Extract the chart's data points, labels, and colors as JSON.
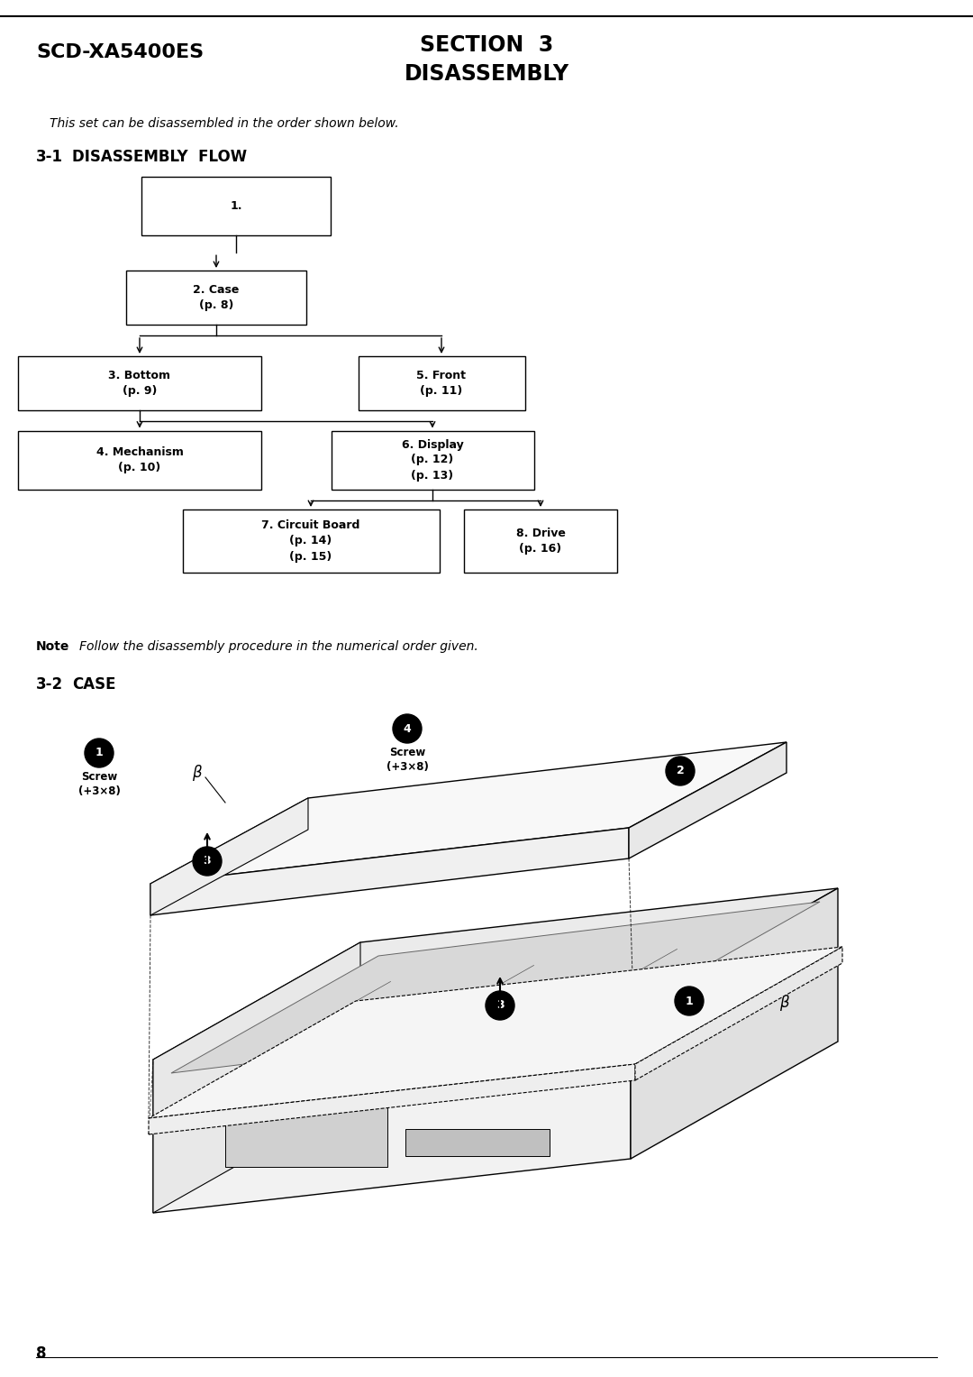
{
  "bg_color": "#ffffff",
  "page_title_left": "SCD-XA5400ES",
  "section_title_line1": "SECTION  3",
  "section_title_line2": "DISASSEMBLY",
  "subtitle_italic": "This set can be disassembled in the order shown below.",
  "section1_num": "3-1",
  "section1_title": "DISASSEMBLY FLOW",
  "note_bold": "Note",
  "note_italic": "Follow the disassembly procedure in the numerical order given.",
  "section2_num": "3-2",
  "section2_title": "CASE",
  "page_number": "8"
}
